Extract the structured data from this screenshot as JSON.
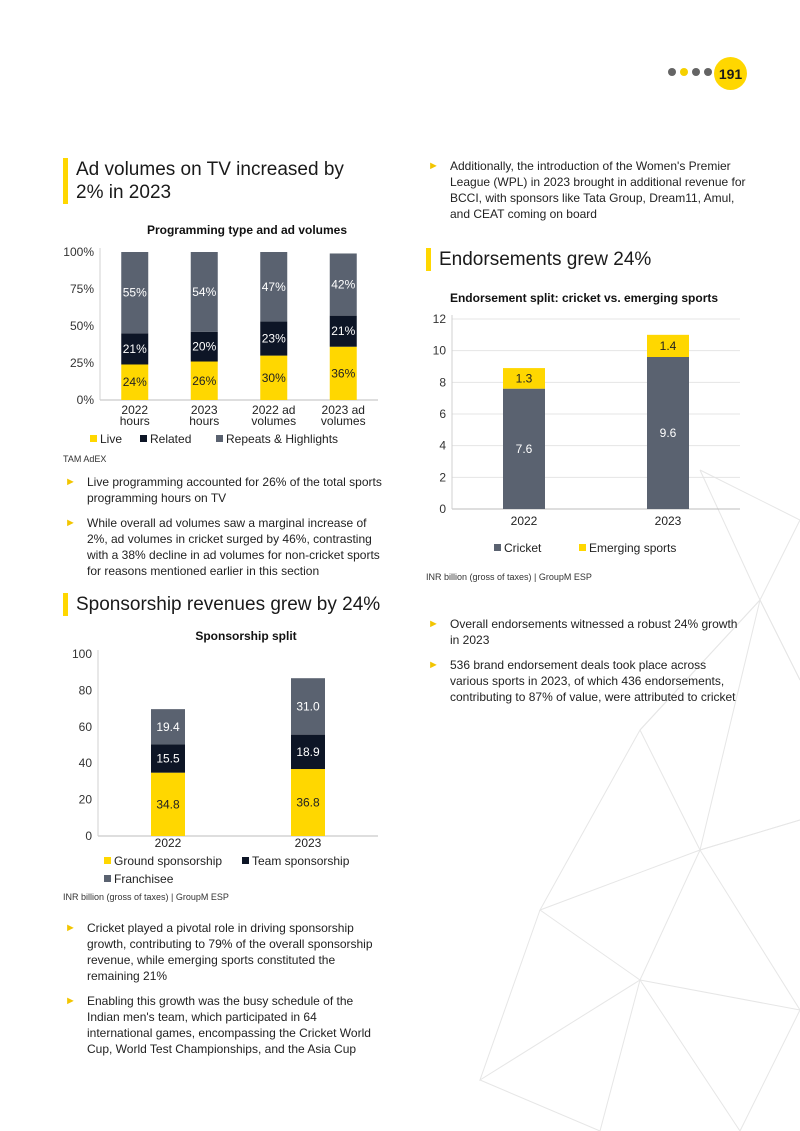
{
  "page": {
    "number": "191"
  },
  "section_tv": {
    "heading": "Ad volumes on TV increased by 2% in 2023",
    "source": "TAM AdEX",
    "bullets": [
      "Live programming accounted for 26% of the total sports programming hours on TV",
      "While overall ad volumes saw a marginal increase of 2%, ad volumes in cricket surged by 46%, contrasting with a 38% decline in ad volumes for non-cricket sports for reasons mentioned earlier in this section"
    ]
  },
  "section_sponsorship": {
    "heading": "Sponsorship revenues grew by 24%",
    "source": "INR billion (gross of taxes) | GroupM ESP",
    "bullets": [
      "Cricket played a pivotal role in driving sponsorship growth, contributing to 79% of the overall sponsorship revenue, while emerging sports constituted the remaining 21%",
      "Enabling this growth was the busy schedule of the Indian men's team, which participated in 64 international games, encompassing the Cricket World Cup, World Test Championships, and the Asia Cup"
    ]
  },
  "section_endorse": {
    "intro_bullet": "Additionally, the introduction of the Women's Premier League (WPL) in 2023 brought in additional revenue for BCCI, with sponsors like Tata Group, Dream11, Amul, and CEAT coming on board",
    "heading": "Endorsements grew 24%",
    "source": "INR billion (gross of taxes) | GroupM ESP",
    "bullets": [
      "Overall endorsements witnessed a robust 24% growth in 2023",
      "536 brand endorsement deals took place across various sports in 2023, of which 436 endorsements, contributing to 87% of value, were attributed to cricket"
    ]
  },
  "colors": {
    "yellow": "#ffd700",
    "navy": "#0d1526",
    "slate": "#5a6270"
  },
  "chart_data": [
    {
      "id": "programming",
      "type": "bar",
      "stacked": true,
      "title": "Programming type and ad volumes",
      "categories": [
        [
          "2022",
          "hours"
        ],
        [
          "2023",
          "hours"
        ],
        [
          "2022 ad",
          "volumes"
        ],
        [
          "2023 ad",
          "volumes"
        ]
      ],
      "y_ticks": [
        "100%",
        "75%",
        "50%",
        "25%",
        "0%"
      ],
      "ylim": [
        0,
        100
      ],
      "series": [
        {
          "name": "Live",
          "color": "#ffd700",
          "values": [
            24,
            26,
            30,
            36
          ],
          "labels": [
            "24%",
            "26%",
            "30%",
            "36%"
          ]
        },
        {
          "name": "Related",
          "color": "#0d1526",
          "values": [
            21,
            20,
            23,
            21
          ],
          "labels": [
            "21%",
            "20%",
            "23%",
            "21%"
          ]
        },
        {
          "name": "Repeats & Highlights",
          "color": "#5a6270",
          "values": [
            55,
            54,
            47,
            42
          ],
          "labels": [
            "55%",
            "54%",
            "47%",
            "42%"
          ]
        }
      ],
      "legend": "bottom"
    },
    {
      "id": "sponsorship",
      "type": "bar",
      "stacked": true,
      "title": "Sponsorship split",
      "categories": [
        "2022",
        "2023"
      ],
      "y_ticks": [
        "100",
        "80",
        "60",
        "40",
        "20",
        "0"
      ],
      "ylim": [
        0,
        100
      ],
      "series": [
        {
          "name": "Ground sponsorship",
          "color": "#ffd700",
          "values": [
            34.8,
            36.8
          ],
          "labels": [
            "34.8",
            "36.8"
          ]
        },
        {
          "name": "Team sponsorship",
          "color": "#0d1526",
          "values": [
            15.5,
            18.9
          ],
          "labels": [
            "15.5",
            "18.9"
          ]
        },
        {
          "name": "Franchisee",
          "color": "#5a6270",
          "values": [
            19.4,
            31.0
          ],
          "labels": [
            "19.4",
            "31.0"
          ]
        }
      ],
      "legend": "bottom"
    },
    {
      "id": "endorsement",
      "type": "bar",
      "stacked": true,
      "title": "Endorsement split: cricket vs. emerging sports",
      "categories": [
        "2022",
        "2023"
      ],
      "y_ticks": [
        "12",
        "10",
        "8",
        "6",
        "4",
        "2",
        "0"
      ],
      "ylim": [
        0,
        12
      ],
      "series": [
        {
          "name": "Cricket",
          "color": "#5a6270",
          "values": [
            7.6,
            9.6
          ],
          "labels": [
            "7.6",
            "9.6"
          ]
        },
        {
          "name": "Emerging sports",
          "color": "#ffd700",
          "values": [
            1.3,
            1.4
          ],
          "labels": [
            "1.3",
            "1.4"
          ]
        }
      ],
      "legend": "bottom"
    }
  ]
}
